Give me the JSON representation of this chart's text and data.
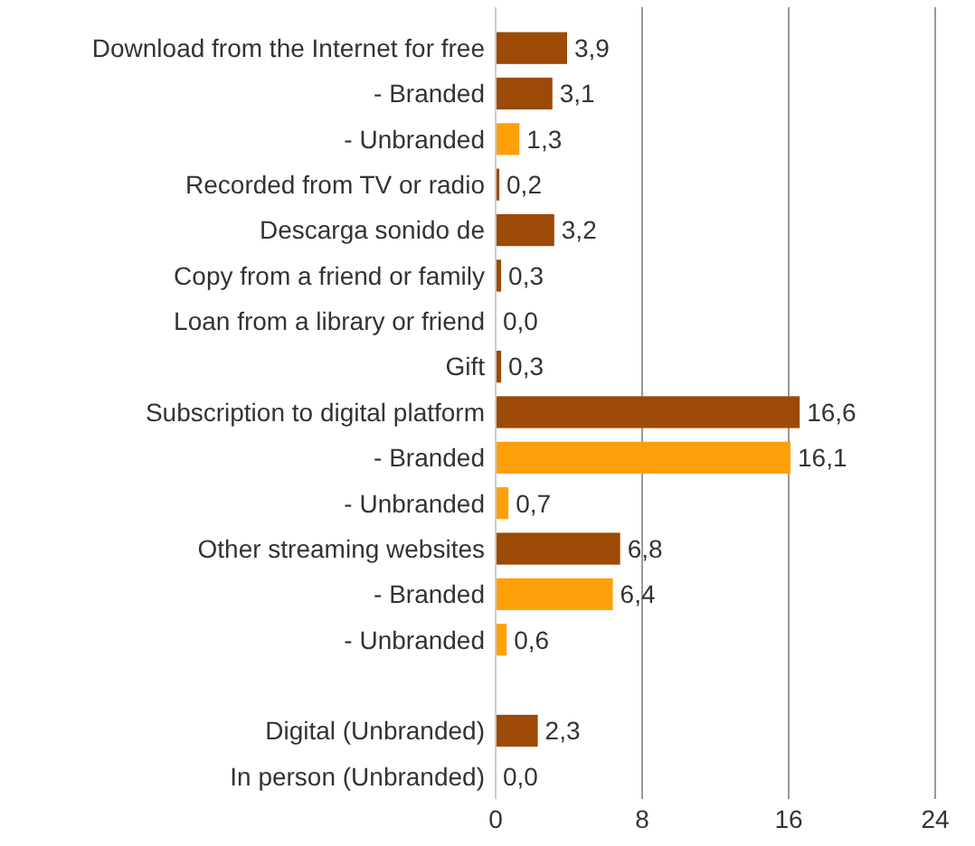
{
  "chart_data": {
    "type": "bar",
    "orientation": "horizontal",
    "categories": [
      "Download from the Internet for free",
      "- Branded",
      "- Unbranded",
      "Recorded from TV or radio",
      "Descarga sonido de",
      "Copy from a friend or family",
      "Loan from a library or friend",
      "Gift",
      "Subscription to digital platform",
      "- Branded",
      "- Unbranded",
      "Other streaming websites",
      "- Branded",
      "- Unbranded",
      null,
      "Digital (Unbranded)",
      "In person (Unbranded)"
    ],
    "values": [
      3.9,
      3.1,
      1.3,
      0.2,
      3.2,
      0.3,
      0.0,
      0.3,
      16.6,
      16.1,
      0.7,
      6.8,
      6.4,
      0.6,
      null,
      2.3,
      0.0
    ],
    "value_labels": [
      "3,9",
      "3,1",
      "1,3",
      "0,2",
      "3,2",
      "0,3",
      "0,0",
      "0,3",
      "16,6",
      "16,1",
      "0,7",
      "6,8",
      "6,4",
      "0,6",
      null,
      "2,3",
      "0,0"
    ],
    "colors": [
      "#9c4a06",
      "#9c4a06",
      "#ffa00a",
      "#9c4a06",
      "#9c4a06",
      "#9c4a06",
      "#9c4a06",
      "#9c4a06",
      "#9c4a06",
      "#ffa00a",
      "#ffa00a",
      "#9c4a06",
      "#ffa00a",
      "#ffa00a",
      null,
      "#9c4a06",
      "#9c4a06"
    ],
    "xlim": [
      0,
      24
    ],
    "xticks": [
      0,
      8,
      16,
      24
    ],
    "grid": "x"
  }
}
